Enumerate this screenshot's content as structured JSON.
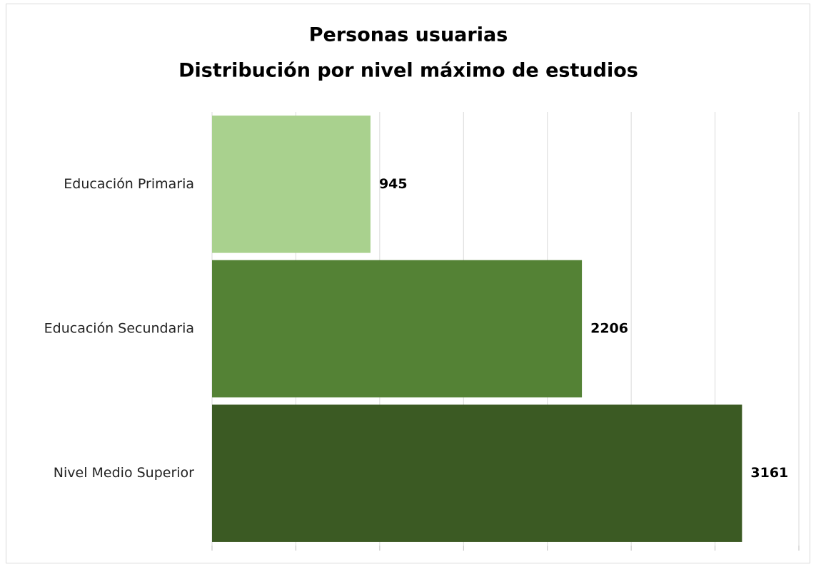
{
  "chart_data": {
    "type": "barh",
    "title": [
      "Personas usuarias",
      "Distribución por nivel máximo de estudios"
    ],
    "categories": [
      "Educación Primaria",
      "Educación Secundaria",
      "Nivel Medio Superior"
    ],
    "values": [
      945,
      2206,
      3161
    ],
    "colors": [
      "#a9d18e",
      "#548235",
      "#3b5a23"
    ],
    "xlim": [
      0,
      3500
    ],
    "xticks": [
      0,
      500,
      1000,
      1500,
      2000,
      2500,
      3000,
      3500
    ],
    "grid": true
  }
}
